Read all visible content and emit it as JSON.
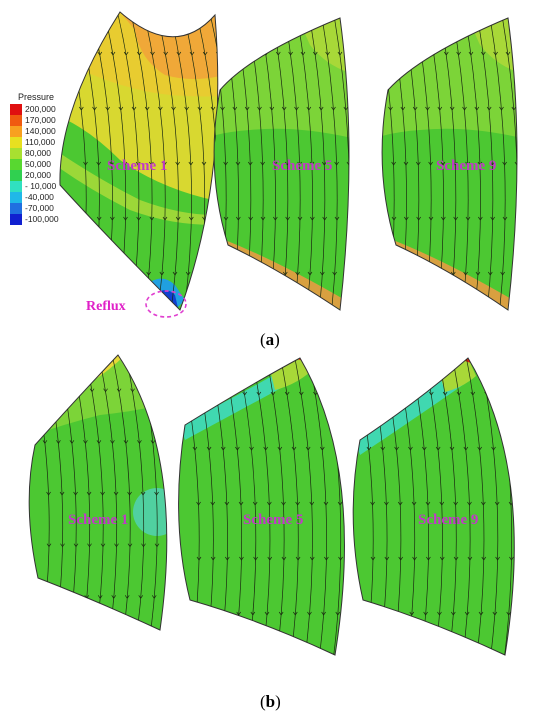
{
  "legend": {
    "title": "Pressure",
    "ticks": [
      "200,000",
      "170,000",
      "140,000",
      "110,000",
      "80,000",
      "50,000",
      "20,000",
      "- 10,000",
      "-40,000",
      "-70,000",
      "-100,000"
    ],
    "colors": [
      "#e01010",
      "#f05a10",
      "#f8a020",
      "#e8e020",
      "#a8e030",
      "#58d830",
      "#30d050",
      "#30e0c0",
      "#20b8e8",
      "#2070e0",
      "#1020d0"
    ]
  },
  "reflux_label": "Reflux",
  "panel_a": {
    "caption_letter": "a",
    "schemes": [
      "Scheme 1",
      "Scheme 5",
      "Scheme 9"
    ]
  },
  "panel_b": {
    "caption_letter": "b",
    "schemes": [
      "Scheme 1",
      "Scheme 5",
      "Scheme 9"
    ]
  },
  "colors": {
    "field_green": "#4cc832",
    "field_light_green": "#7cd438",
    "yellow": "#e8d830",
    "orange": "#f0a030",
    "red": "#e02010",
    "cyan": "#38d8a8",
    "blue": "#2060e0",
    "reflux_ring": "#e040d0"
  }
}
